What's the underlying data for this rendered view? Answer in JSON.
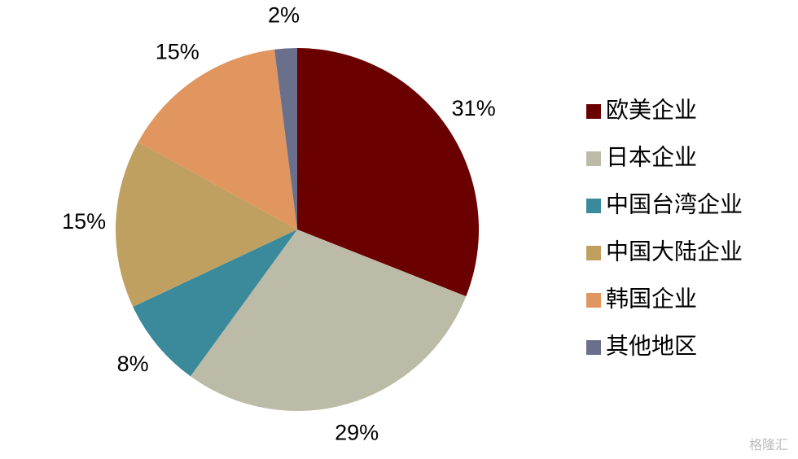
{
  "chart_data": {
    "type": "pie",
    "categories": [
      "欧美企业",
      "日本企业",
      "中国台湾企业",
      "中国大陆企业",
      "韩国企业",
      "其他地区"
    ],
    "values": [
      31,
      29,
      8,
      15,
      15,
      2
    ],
    "value_labels": [
      "31%",
      "29%",
      "8%",
      "15%",
      "15%",
      "2%"
    ],
    "colors": [
      "#6b0000",
      "#bcbba8",
      "#3a8a9c",
      "#c0a060",
      "#e0965e",
      "#6a6f8c"
    ],
    "legend": "right"
  },
  "watermark": "格隆汇"
}
